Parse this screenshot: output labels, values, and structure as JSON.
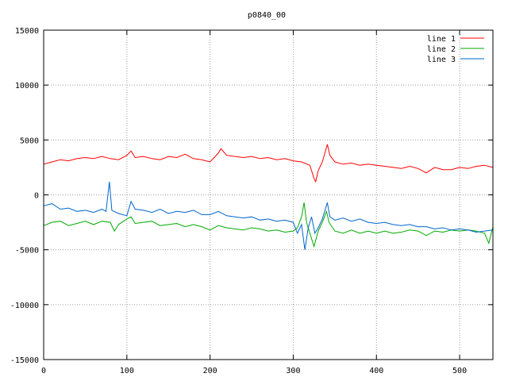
{
  "chart_data": {
    "type": "line",
    "title": "p0840_00",
    "xlabel": "",
    "ylabel": "",
    "xlim": [
      0,
      540
    ],
    "ylim": [
      -15000,
      15000
    ],
    "xticks": [
      0,
      100,
      200,
      300,
      400,
      500
    ],
    "yticks": [
      -15000,
      -10000,
      -5000,
      0,
      5000,
      10000,
      15000
    ],
    "grid": true,
    "legend": "top-right",
    "series": [
      {
        "name": "line 1",
        "color": "#ff0000",
        "points": [
          [
            0,
            2800
          ],
          [
            10,
            3000
          ],
          [
            20,
            3200
          ],
          [
            30,
            3100
          ],
          [
            40,
            3300
          ],
          [
            50,
            3400
          ],
          [
            60,
            3300
          ],
          [
            70,
            3500
          ],
          [
            80,
            3300
          ],
          [
            90,
            3200
          ],
          [
            100,
            3600
          ],
          [
            105,
            4000
          ],
          [
            110,
            3400
          ],
          [
            120,
            3500
          ],
          [
            130,
            3300
          ],
          [
            140,
            3200
          ],
          [
            150,
            3500
          ],
          [
            160,
            3400
          ],
          [
            170,
            3700
          ],
          [
            180,
            3300
          ],
          [
            190,
            3200
          ],
          [
            200,
            3000
          ],
          [
            210,
            3800
          ],
          [
            213,
            4200
          ],
          [
            220,
            3600
          ],
          [
            230,
            3500
          ],
          [
            240,
            3400
          ],
          [
            250,
            3500
          ],
          [
            260,
            3300
          ],
          [
            270,
            3400
          ],
          [
            280,
            3200
          ],
          [
            290,
            3300
          ],
          [
            300,
            3100
          ],
          [
            310,
            3000
          ],
          [
            320,
            2700
          ],
          [
            325,
            1500
          ],
          [
            327,
            1200
          ],
          [
            330,
            2200
          ],
          [
            335,
            3000
          ],
          [
            338,
            3800
          ],
          [
            341,
            4600
          ],
          [
            344,
            3600
          ],
          [
            350,
            3000
          ],
          [
            360,
            2800
          ],
          [
            370,
            2900
          ],
          [
            380,
            2700
          ],
          [
            390,
            2800
          ],
          [
            400,
            2700
          ],
          [
            410,
            2600
          ],
          [
            420,
            2500
          ],
          [
            430,
            2400
          ],
          [
            440,
            2600
          ],
          [
            450,
            2400
          ],
          [
            460,
            2000
          ],
          [
            470,
            2500
          ],
          [
            480,
            2300
          ],
          [
            490,
            2300
          ],
          [
            500,
            2500
          ],
          [
            510,
            2400
          ],
          [
            520,
            2600
          ],
          [
            530,
            2700
          ],
          [
            540,
            2500
          ]
        ]
      },
      {
        "name": "line 2",
        "color": "#00aa00",
        "points": [
          [
            0,
            -2800
          ],
          [
            10,
            -2500
          ],
          [
            20,
            -2400
          ],
          [
            30,
            -2800
          ],
          [
            40,
            -2600
          ],
          [
            50,
            -2400
          ],
          [
            60,
            -2700
          ],
          [
            70,
            -2400
          ],
          [
            80,
            -2500
          ],
          [
            85,
            -3300
          ],
          [
            90,
            -2700
          ],
          [
            100,
            -2200
          ],
          [
            105,
            -2000
          ],
          [
            110,
            -2600
          ],
          [
            120,
            -2500
          ],
          [
            130,
            -2400
          ],
          [
            140,
            -2800
          ],
          [
            150,
            -2700
          ],
          [
            160,
            -2600
          ],
          [
            170,
            -2900
          ],
          [
            180,
            -2700
          ],
          [
            190,
            -2900
          ],
          [
            200,
            -3200
          ],
          [
            210,
            -2800
          ],
          [
            220,
            -3000
          ],
          [
            230,
            -3100
          ],
          [
            240,
            -3200
          ],
          [
            250,
            -3000
          ],
          [
            260,
            -3100
          ],
          [
            270,
            -3300
          ],
          [
            280,
            -3200
          ],
          [
            290,
            -3400
          ],
          [
            300,
            -3300
          ],
          [
            305,
            -3000
          ],
          [
            310,
            -2000
          ],
          [
            313,
            -700
          ],
          [
            316,
            -2500
          ],
          [
            320,
            -3500
          ],
          [
            325,
            -4700
          ],
          [
            330,
            -3300
          ],
          [
            335,
            -2500
          ],
          [
            340,
            -1500
          ],
          [
            343,
            -2500
          ],
          [
            350,
            -3300
          ],
          [
            360,
            -3500
          ],
          [
            370,
            -3200
          ],
          [
            380,
            -3500
          ],
          [
            390,
            -3300
          ],
          [
            400,
            -3500
          ],
          [
            410,
            -3300
          ],
          [
            420,
            -3500
          ],
          [
            430,
            -3400
          ],
          [
            440,
            -3200
          ],
          [
            450,
            -3300
          ],
          [
            460,
            -3700
          ],
          [
            470,
            -3300
          ],
          [
            480,
            -3400
          ],
          [
            490,
            -3200
          ],
          [
            500,
            -3300
          ],
          [
            510,
            -3200
          ],
          [
            520,
            -3300
          ],
          [
            530,
            -3500
          ],
          [
            535,
            -4400
          ],
          [
            540,
            -2900
          ]
        ]
      },
      {
        "name": "line 3",
        "color": "#0066cc",
        "points": [
          [
            0,
            -1000
          ],
          [
            10,
            -800
          ],
          [
            20,
            -1300
          ],
          [
            30,
            -1200
          ],
          [
            40,
            -1500
          ],
          [
            50,
            -1400
          ],
          [
            60,
            -1600
          ],
          [
            70,
            -1300
          ],
          [
            75,
            -1500
          ],
          [
            79,
            1200
          ],
          [
            82,
            -1400
          ],
          [
            90,
            -1700
          ],
          [
            100,
            -1900
          ],
          [
            105,
            -600
          ],
          [
            110,
            -1300
          ],
          [
            120,
            -1400
          ],
          [
            130,
            -1600
          ],
          [
            140,
            -1300
          ],
          [
            150,
            -1700
          ],
          [
            160,
            -1500
          ],
          [
            170,
            -1600
          ],
          [
            180,
            -1400
          ],
          [
            190,
            -1800
          ],
          [
            200,
            -1800
          ],
          [
            210,
            -1500
          ],
          [
            220,
            -1900
          ],
          [
            230,
            -2000
          ],
          [
            240,
            -2100
          ],
          [
            250,
            -2000
          ],
          [
            260,
            -2300
          ],
          [
            270,
            -2200
          ],
          [
            280,
            -2400
          ],
          [
            290,
            -2300
          ],
          [
            300,
            -2500
          ],
          [
            305,
            -3500
          ],
          [
            310,
            -2700
          ],
          [
            314,
            -5000
          ],
          [
            318,
            -3000
          ],
          [
            322,
            -2000
          ],
          [
            326,
            -3500
          ],
          [
            330,
            -3000
          ],
          [
            335,
            -2200
          ],
          [
            341,
            -700
          ],
          [
            344,
            -2000
          ],
          [
            350,
            -2300
          ],
          [
            360,
            -2100
          ],
          [
            370,
            -2400
          ],
          [
            380,
            -2200
          ],
          [
            390,
            -2500
          ],
          [
            400,
            -2600
          ],
          [
            410,
            -2500
          ],
          [
            420,
            -2700
          ],
          [
            430,
            -2800
          ],
          [
            440,
            -2700
          ],
          [
            450,
            -2900
          ],
          [
            460,
            -2900
          ],
          [
            470,
            -3100
          ],
          [
            480,
            -3000
          ],
          [
            490,
            -3200
          ],
          [
            500,
            -3100
          ],
          [
            510,
            -3200
          ],
          [
            520,
            -3400
          ],
          [
            530,
            -3300
          ],
          [
            540,
            -3200
          ]
        ]
      }
    ]
  }
}
